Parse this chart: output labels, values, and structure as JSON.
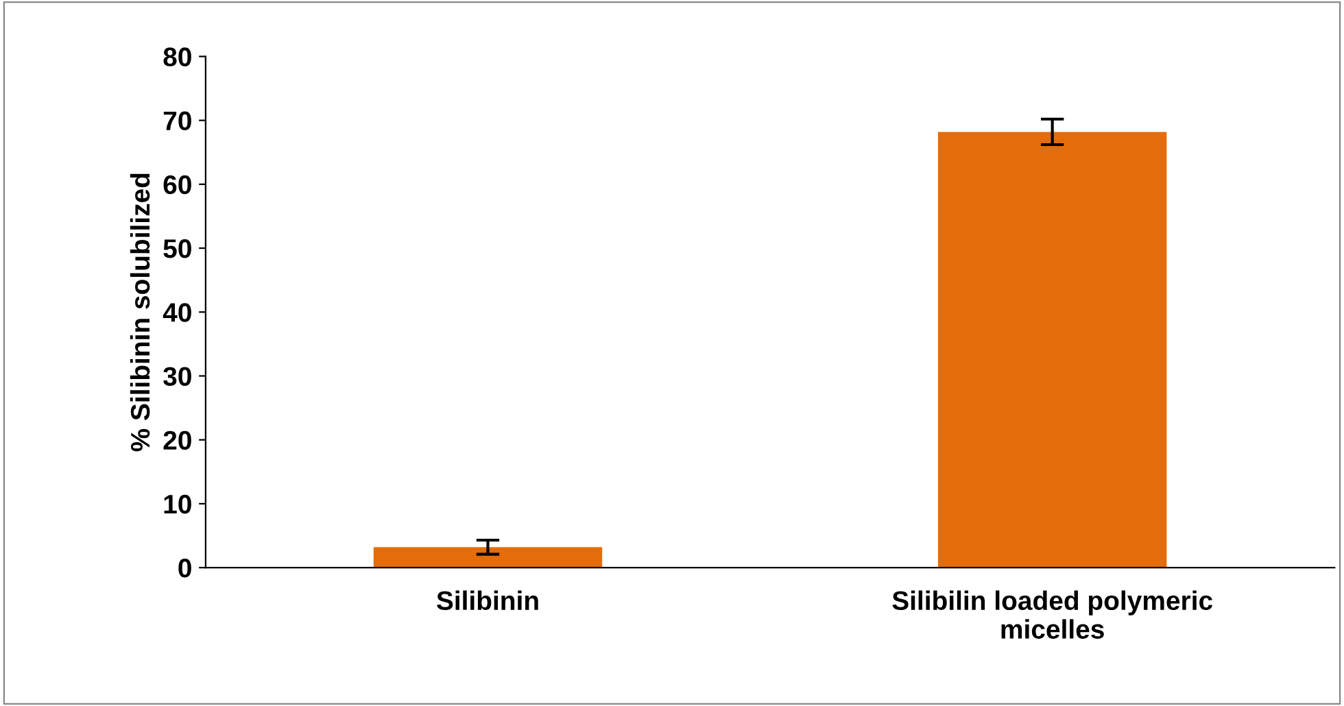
{
  "chart_data": {
    "type": "bar",
    "ylabel": "% Silibinin solubilized",
    "categories": [
      "Silibinin",
      "Silibilin loaded polymeric\nmicelles"
    ],
    "series": [
      {
        "color": "#e46c0a",
        "values": [
          3.2,
          68.2
        ],
        "errors": [
          1.1,
          2.0
        ]
      }
    ],
    "ylim": [
      0,
      80
    ],
    "yticks": [
      0,
      10,
      20,
      30,
      40,
      50,
      60,
      70,
      80
    ],
    "grid": false,
    "legend": false
  }
}
